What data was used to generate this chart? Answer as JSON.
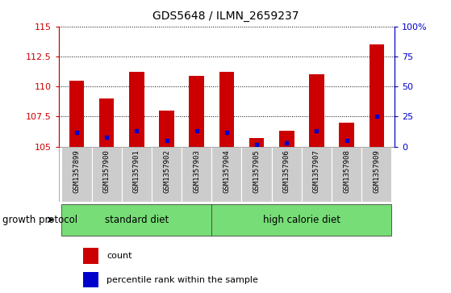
{
  "title": "GDS5648 / ILMN_2659237",
  "samples": [
    "GSM1357899",
    "GSM1357900",
    "GSM1357901",
    "GSM1357902",
    "GSM1357903",
    "GSM1357904",
    "GSM1357905",
    "GSM1357906",
    "GSM1357907",
    "GSM1357908",
    "GSM1357909"
  ],
  "red_tops": [
    110.5,
    109.0,
    111.2,
    108.0,
    110.9,
    111.2,
    105.7,
    106.3,
    111.0,
    107.0,
    113.5
  ],
  "blue_vals": [
    106.2,
    105.8,
    106.3,
    105.5,
    106.3,
    106.2,
    105.2,
    105.3,
    106.3,
    105.5,
    107.5
  ],
  "ymin": 105,
  "ymax": 115,
  "yticks_left": [
    105,
    107.5,
    110,
    112.5,
    115
  ],
  "yticks_right": [
    0,
    25,
    50,
    75,
    100
  ],
  "left_color": "#cc0000",
  "right_color": "#0000cc",
  "bar_color": "#cc0000",
  "blue_color": "#0000cc",
  "standard_diet_label": "standard diet",
  "high_calorie_label": "high calorie diet",
  "group_label": "growth protocol",
  "legend_count": "count",
  "legend_percentile": "percentile rank within the sample",
  "bar_width": 0.5,
  "group_bg": "#77dd77",
  "cell_bg": "#cccccc"
}
